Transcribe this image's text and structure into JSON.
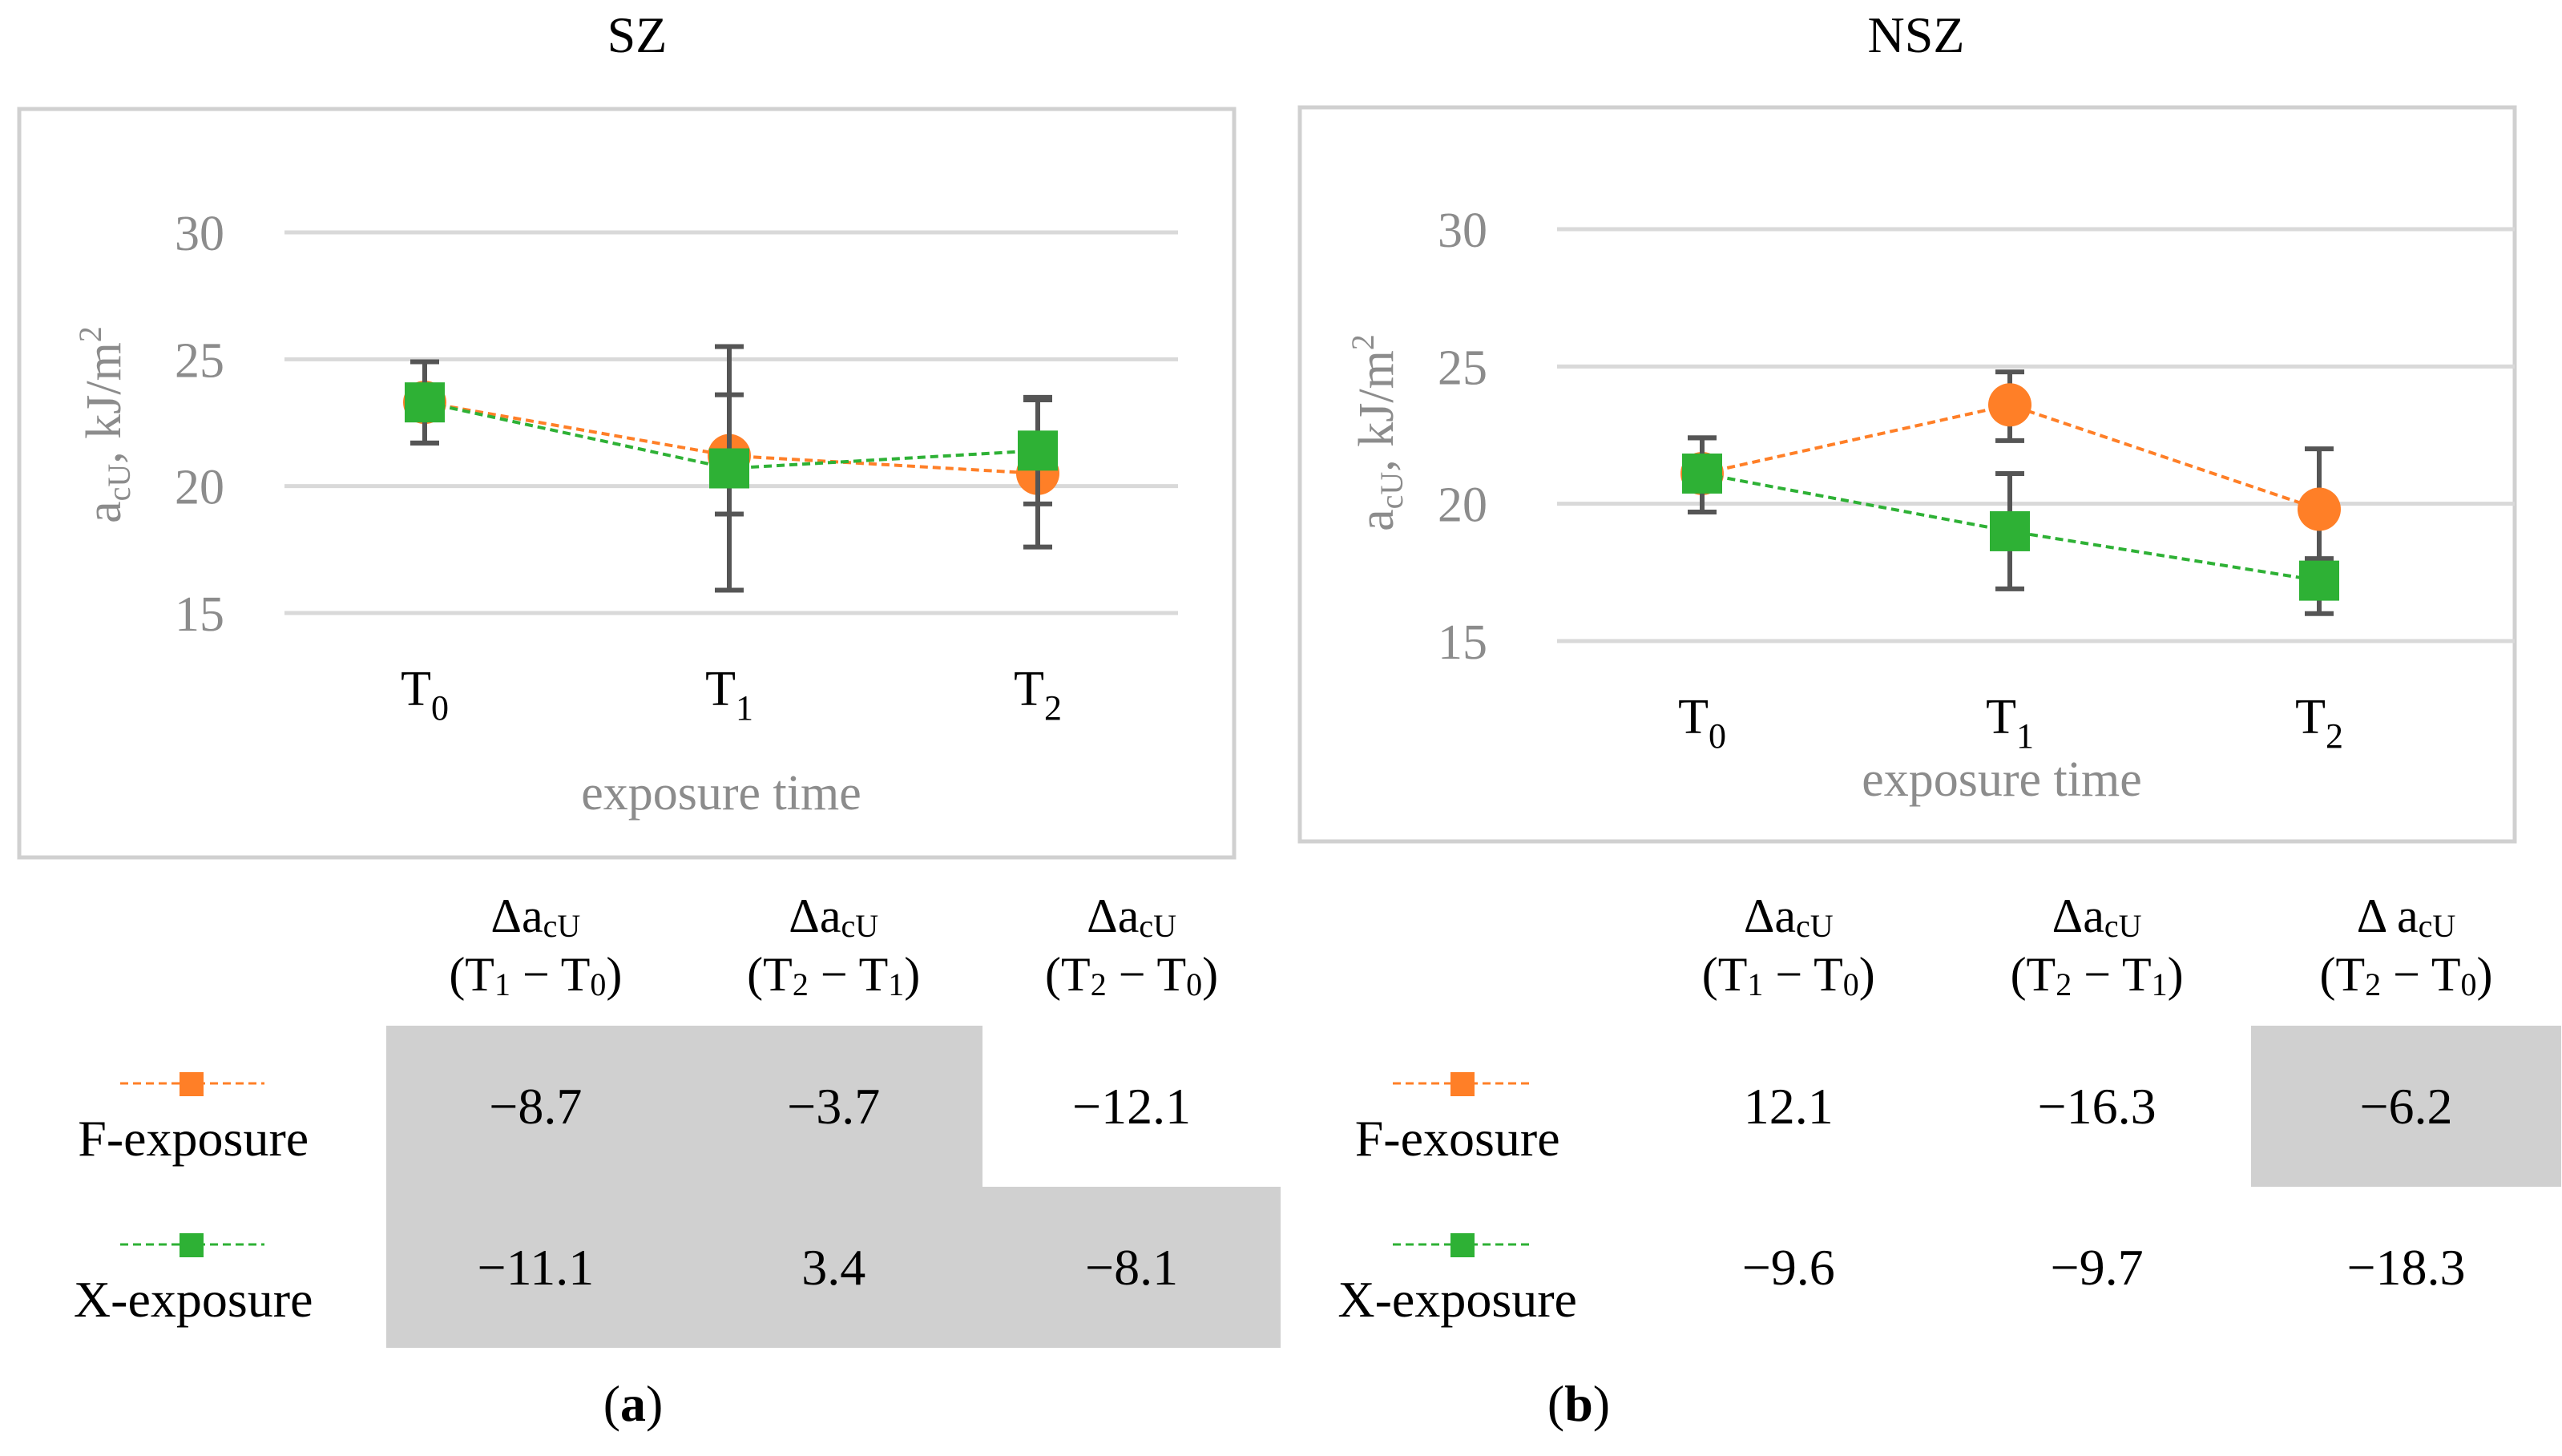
{
  "colors": {
    "f_exposure": "#ff7f27",
    "x_exposure": "#2eb135",
    "error_bar": "#555555",
    "axis_text": "#8c8c8c",
    "grid": "#d9d9d9",
    "frame": "#d0d0d0",
    "shade": "#d0d0d0"
  },
  "chart_data": [
    {
      "id": "a",
      "type": "line",
      "title": "SZ",
      "xlabel": "exposure time",
      "ylabel": "a",
      "ylabel_sub": "cU",
      "ylabel_unit": ", kJ/m",
      "ylabel_sup": "2",
      "categories": [
        {
          "base": "T",
          "sub": "0"
        },
        {
          "base": "T",
          "sub": "1"
        },
        {
          "base": "T",
          "sub": "2"
        }
      ],
      "yticks": [
        "15",
        "20",
        "25",
        "30"
      ],
      "ylim": [
        15,
        30
      ],
      "grid": true,
      "series": [
        {
          "name": "F-exposure",
          "marker": "circle",
          "values": [
            23.3,
            21.2,
            20.5
          ],
          "err_low": [
            21.7,
            18.9,
            17.6
          ],
          "err_high": [
            24.9,
            23.6,
            23.4
          ]
        },
        {
          "name": "X-exposure",
          "marker": "square",
          "values": [
            23.3,
            20.7,
            21.4
          ],
          "err_low": [
            21.7,
            15.9,
            19.3
          ],
          "err_high": [
            24.9,
            25.5,
            23.5
          ]
        }
      ],
      "table": {
        "headers": [
          {
            "delta": "Δa",
            "sub": "cU",
            "range_a": "(T",
            "range_a_sub": "1",
            "range_mid": " − T",
            "range_b_sub": "0",
            "range_end": ")"
          },
          {
            "delta": "Δa",
            "sub": "cU",
            "range_a": "(T",
            "range_a_sub": "2",
            "range_mid": " − T",
            "range_b_sub": "1",
            "range_end": ")"
          },
          {
            "delta": "Δa",
            "sub": "cU",
            "range_a": "(T",
            "range_a_sub": "2",
            "range_mid": " − T",
            "range_b_sub": "0",
            "range_end": ")"
          }
        ],
        "rows": [
          {
            "label": "F-exposure",
            "values": [
              "−8.7",
              "−3.7",
              "−12.1"
            ]
          },
          {
            "label": "X-exposure",
            "values": [
              "−11.1",
              "3.4",
              "−8.1"
            ]
          }
        ]
      },
      "panel_label": "a"
    },
    {
      "id": "b",
      "type": "line",
      "title": "NSZ",
      "xlabel": "exposure time",
      "ylabel": "a",
      "ylabel_sub": "cU",
      "ylabel_unit": ", kJ/m",
      "ylabel_sup": "2",
      "categories": [
        {
          "base": "T",
          "sub": "0"
        },
        {
          "base": "T",
          "sub": "1"
        },
        {
          "base": "T",
          "sub": "2"
        }
      ],
      "yticks": [
        "15",
        "20",
        "25",
        "30"
      ],
      "ylim": [
        15,
        30
      ],
      "grid": true,
      "series": [
        {
          "name": "F-exosure",
          "marker": "circle",
          "values": [
            21.1,
            23.6,
            19.8
          ],
          "err_low": [
            19.7,
            22.3,
            18.0
          ],
          "err_high": [
            22.4,
            24.8,
            22.0
          ]
        },
        {
          "name": "X-exposure",
          "marker": "square",
          "values": [
            21.1,
            19.0,
            17.2
          ],
          "err_low": [
            19.7,
            16.9,
            16.0
          ],
          "err_high": [
            22.4,
            21.1,
            18.0
          ]
        }
      ],
      "table": {
        "headers": [
          {
            "delta": "Δa",
            "sub": "cU",
            "range_a": "(T",
            "range_a_sub": "1",
            "range_mid": " − T",
            "range_b_sub": "0",
            "range_end": ")"
          },
          {
            "delta": "Δa",
            "sub": "cU",
            "range_a": "(T",
            "range_a_sub": "2",
            "range_mid": " − T",
            "range_b_sub": "1",
            "range_end": ")"
          },
          {
            "delta": "Δ a",
            "sub": "cU",
            "range_a": "(T",
            "range_a_sub": "2",
            "range_mid": " − T",
            "range_b_sub": "0",
            "range_end": ")"
          }
        ],
        "rows": [
          {
            "label": "F-exosure",
            "values": [
              "12.1",
              "−16.3",
              "−6.2"
            ]
          },
          {
            "label": "X-exposure",
            "values": [
              "−9.6",
              "−9.7",
              "−18.3"
            ]
          }
        ]
      },
      "panel_label": "b"
    }
  ]
}
